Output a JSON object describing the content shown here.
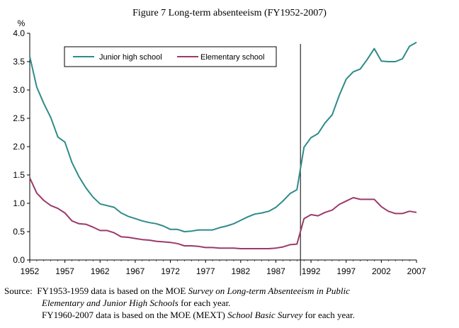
{
  "chart_data": {
    "type": "line",
    "title": "Figure 7 Long-term absenteeism (FY1952-2007)",
    "ylabel": "%",
    "xlabel": "",
    "xlim": [
      1952,
      2007
    ],
    "ylim": [
      0,
      4.0
    ],
    "yticks": [
      0.0,
      0.5,
      1.0,
      1.5,
      2.0,
      2.5,
      3.0,
      3.5,
      4.0
    ],
    "ytick_labels": [
      "0.0",
      "0.5",
      "1.0",
      "1.5",
      "2.0",
      "2.5",
      "3.0",
      "3.5",
      "4.0"
    ],
    "xticks": [
      1952,
      1957,
      1962,
      1967,
      1972,
      1977,
      1982,
      1987,
      1992,
      1997,
      2002,
      2007
    ],
    "xtick_labels": [
      "1952",
      "1957",
      "1962",
      "1967",
      "1972",
      "1977",
      "1982",
      "1987",
      "1992",
      "1997",
      "2002",
      "2007"
    ],
    "grid": false,
    "legend_position": "top-left",
    "vertical_marker_x": 1990.5,
    "x": [
      1952,
      1953,
      1954,
      1955,
      1956,
      1957,
      1958,
      1959,
      1960,
      1961,
      1962,
      1963,
      1964,
      1965,
      1966,
      1967,
      1968,
      1969,
      1970,
      1971,
      1972,
      1973,
      1974,
      1975,
      1976,
      1977,
      1978,
      1979,
      1980,
      1981,
      1982,
      1983,
      1984,
      1985,
      1986,
      1987,
      1988,
      1989,
      1990,
      1991,
      1992,
      1993,
      1994,
      1995,
      1996,
      1997,
      1998,
      1999,
      2000,
      2001,
      2002,
      2003,
      2004,
      2005,
      2006,
      2007
    ],
    "series": [
      {
        "name": "Junior high school",
        "color": "#2e8b8b",
        "values": [
          3.59,
          3.05,
          2.76,
          2.51,
          2.17,
          2.08,
          1.72,
          1.47,
          1.27,
          1.11,
          0.99,
          0.96,
          0.93,
          0.83,
          0.77,
          0.73,
          0.69,
          0.66,
          0.64,
          0.6,
          0.54,
          0.54,
          0.5,
          0.51,
          0.53,
          0.53,
          0.53,
          0.57,
          0.6,
          0.64,
          0.7,
          0.76,
          0.81,
          0.83,
          0.86,
          0.93,
          1.04,
          1.17,
          1.24,
          1.99,
          2.16,
          2.23,
          2.42,
          2.56,
          2.9,
          3.19,
          3.32,
          3.37,
          3.54,
          3.73,
          3.51,
          3.5,
          3.5,
          3.55,
          3.77,
          3.84
        ]
      },
      {
        "name": "Elementary school",
        "color": "#9b3a6a",
        "values": [
          1.45,
          1.18,
          1.05,
          0.96,
          0.91,
          0.83,
          0.69,
          0.64,
          0.63,
          0.58,
          0.52,
          0.52,
          0.48,
          0.41,
          0.4,
          0.38,
          0.36,
          0.35,
          0.33,
          0.32,
          0.31,
          0.29,
          0.25,
          0.25,
          0.24,
          0.22,
          0.22,
          0.21,
          0.21,
          0.21,
          0.2,
          0.2,
          0.2,
          0.2,
          0.2,
          0.21,
          0.23,
          0.27,
          0.28,
          0.73,
          0.8,
          0.78,
          0.84,
          0.88,
          0.98,
          1.04,
          1.1,
          1.07,
          1.07,
          1.07,
          0.94,
          0.86,
          0.82,
          0.82,
          0.86,
          0.84
        ]
      }
    ]
  },
  "source_note": {
    "label": "Source:",
    "line1_a": "FY1953-1959 data is based on the MOE ",
    "line1_italic": "Survey on Long-term Absenteeism in Public",
    "line2_italic": "Elementary and Junior High Schools",
    "line2_b": " for each year.",
    "line3_a": "FY1960-2007 data is based on the MOE (MEXT) ",
    "line3_italic": "School Basic Survey",
    "line3_b": " for each year."
  }
}
